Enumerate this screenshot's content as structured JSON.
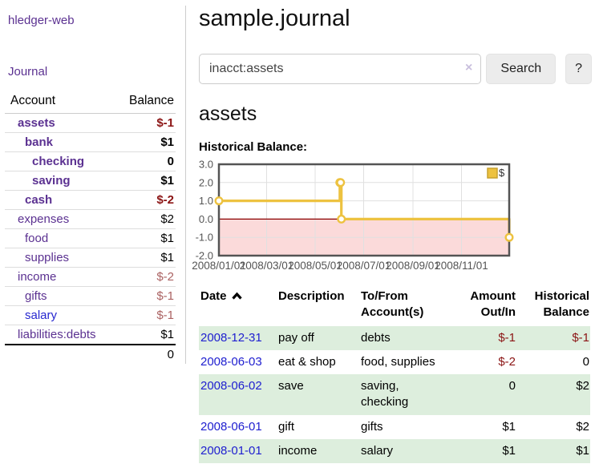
{
  "app": {
    "title": "hledger-web"
  },
  "sidebar": {
    "nav": [
      {
        "label": "Journal"
      }
    ],
    "accounts_table": {
      "account_header": "Account",
      "balance_header": "Balance",
      "rows": [
        {
          "name": "assets",
          "depth": 1,
          "balance": "$-1",
          "bold": true,
          "balance_style": "negative"
        },
        {
          "name": "bank",
          "depth": 2,
          "balance": "$1",
          "bold": true,
          "balance_style": "normal"
        },
        {
          "name": "checking",
          "depth": 3,
          "balance": "0",
          "bold": true,
          "balance_style": "normal"
        },
        {
          "name": "saving",
          "depth": 3,
          "balance": "$1",
          "bold": true,
          "balance_style": "normal"
        },
        {
          "name": "cash",
          "depth": 2,
          "balance": "$-2",
          "bold": true,
          "balance_style": "negative"
        },
        {
          "name": "expenses",
          "depth": 1,
          "balance": "$2",
          "bold": false,
          "balance_style": "normal"
        },
        {
          "name": "food",
          "depth": 2,
          "balance": "$1",
          "bold": false,
          "balance_style": "normal"
        },
        {
          "name": "supplies",
          "depth": 2,
          "balance": "$1",
          "bold": false,
          "balance_style": "normal"
        },
        {
          "name": "income",
          "depth": 1,
          "balance": "$-2",
          "bold": false,
          "balance_style": "negative-muted"
        },
        {
          "name": "gifts",
          "depth": 2,
          "balance": "$-1",
          "bold": false,
          "balance_style": "negative-muted"
        },
        {
          "name": "salary",
          "depth": 2,
          "balance": "$-1",
          "bold": false,
          "balance_style": "negative-muted",
          "link_color": "blue"
        },
        {
          "name": "liabilities:debts",
          "depth": 1,
          "balance": "$1",
          "bold": false,
          "balance_style": "normal"
        }
      ],
      "total": "0"
    }
  },
  "main": {
    "title": "sample.journal",
    "search": {
      "value": "inacct:assets",
      "clear_icon": "×",
      "button": "Search",
      "help_button": "?"
    },
    "account_heading": "assets",
    "chart_label": "Historical Balance:"
  },
  "chart_data": {
    "type": "line",
    "step": true,
    "title": "Historical Balance",
    "series": [
      {
        "name": "$",
        "color": "#edc240",
        "points": [
          [
            "2008-01-01",
            1
          ],
          [
            "2008-06-01",
            2
          ],
          [
            "2008-06-02",
            2
          ],
          [
            "2008-06-03",
            0
          ],
          [
            "2008-12-31",
            -1
          ]
        ]
      }
    ],
    "ylim": [
      -2,
      3
    ],
    "yticks": [
      3.0,
      2.0,
      1.0,
      0.0,
      -1.0,
      -2.0
    ],
    "xrange": [
      "2008-01-01",
      "2008-12-31"
    ],
    "xtick_labels": [
      "2008/01/01",
      "2008/03/01",
      "2008/05/01",
      "2008/07/01",
      "2008/09/01",
      "2008/11/01"
    ],
    "grid": true,
    "legend_position": "top-right",
    "negative_region_color": "#fbdada",
    "zero_line_color": "#8b0000",
    "border_color": "#545454",
    "grid_color": "#e0e0e0"
  },
  "register_table": {
    "columns": [
      "Date",
      "Description",
      "To/From Account(s)",
      "Amount Out/In",
      "Historical Balance"
    ],
    "sort_icon": "chevron-up",
    "sort_column": "Date",
    "rows": [
      {
        "date": "2008-12-31",
        "description": "pay off",
        "accounts": "debts",
        "amount": "$-1",
        "amount_negative": true,
        "balance": "$-1",
        "balance_negative": true
      },
      {
        "date": "2008-06-03",
        "description": "eat & shop",
        "accounts": "food, supplies",
        "amount": "$-2",
        "amount_negative": true,
        "balance": "0",
        "balance_negative": false
      },
      {
        "date": "2008-06-02",
        "description": "save",
        "accounts": "saving, checking",
        "amount": "0",
        "amount_negative": false,
        "balance": "$2",
        "balance_negative": false
      },
      {
        "date": "2008-06-01",
        "description": "gift",
        "accounts": "gifts",
        "amount": "$1",
        "amount_negative": false,
        "balance": "$2",
        "balance_negative": false
      },
      {
        "date": "2008-01-01",
        "description": "income",
        "accounts": "salary",
        "amount": "$1",
        "amount_negative": false,
        "balance": "$1",
        "balance_negative": false
      }
    ]
  },
  "colors": {
    "link_purple": "#5b3191",
    "link_blue": "#2727cf",
    "date_link_blue": "#2020d0",
    "negative_red": "#8b1414",
    "negative_muted": "#ab6262",
    "row_green": "#ddeedd",
    "chart_gold": "#edc240"
  }
}
